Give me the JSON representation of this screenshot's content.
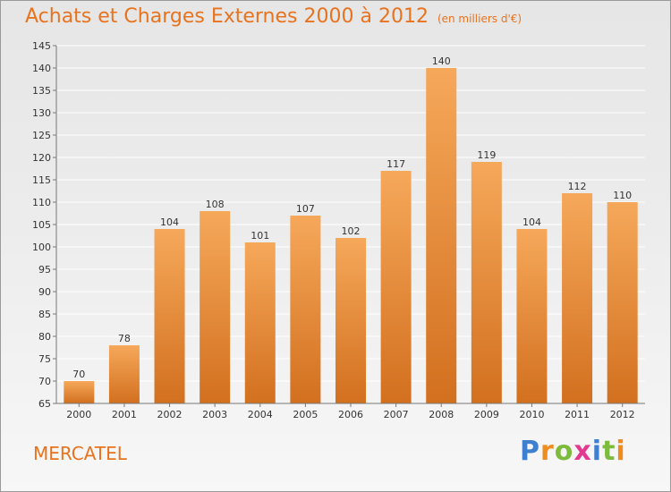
{
  "title": "Achats et Charges Externes 2000 à 2012",
  "unit_note": "(en milliers d'€)",
  "location": "MERCATEL",
  "brand": [
    "P",
    "r",
    "o",
    "x",
    "i",
    "t",
    "i"
  ],
  "colors": {
    "bar_top": "#f6a85a",
    "bar_bottom": "#d2701f",
    "title": "#e8731f",
    "grid": "#ffffff"
  },
  "chart_data": {
    "type": "bar",
    "categories": [
      "2000",
      "2001",
      "2002",
      "2003",
      "2004",
      "2005",
      "2006",
      "2007",
      "2008",
      "2009",
      "2010",
      "2011",
      "2012"
    ],
    "values": [
      70,
      78,
      104,
      108,
      101,
      107,
      102,
      117,
      140,
      119,
      104,
      112,
      110
    ],
    "title": "Achats et Charges Externes 2000 à 2012",
    "ylim": [
      65,
      145
    ],
    "yticks": [
      65,
      70,
      75,
      80,
      85,
      90,
      95,
      100,
      105,
      110,
      115,
      120,
      125,
      130,
      135,
      140,
      145
    ],
    "grid": true,
    "data_labels": true
  }
}
